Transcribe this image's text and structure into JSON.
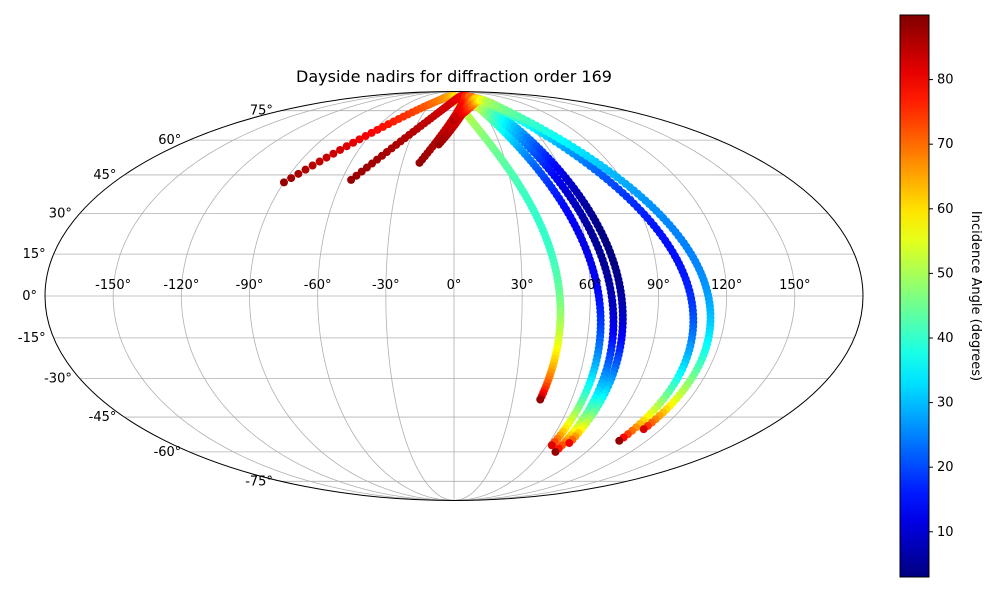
{
  "chart_data": {
    "type": "scatter",
    "projection": "mollweide",
    "title": "Dayside nadirs for diffraction order 169",
    "x_ticks": [
      "-150°",
      "-120°",
      "-90°",
      "-60°",
      "-30°",
      "0°",
      "30°",
      "60°",
      "90°",
      "120°",
      "150°"
    ],
    "y_ticks": [
      "75°",
      "60°",
      "45°",
      "30°",
      "15°",
      "0°",
      "-15°",
      "-30°",
      "-45°",
      "-60°",
      "-75°"
    ],
    "grid": true,
    "colorbar": {
      "label": "Incidence Angle (degrees)",
      "range": [
        3,
        90
      ],
      "ticks": [
        "10",
        "20",
        "30",
        "40",
        "50",
        "60",
        "70",
        "80"
      ],
      "colormap": "jet"
    },
    "tracks": [
      {
        "lon_start": -90,
        "lat_start": 42,
        "lon_peak": 0,
        "lat_peak": 85,
        "lon_end": 44,
        "lat_end": -38,
        "inc_start": 88,
        "inc_peak": 62,
        "inc_end": 88,
        "inc_min": 40
      },
      {
        "lon_start": -55,
        "lat_start": 43,
        "lon_peak": 20,
        "lat_peak": 85,
        "lon_end": 63,
        "lat_end": -57,
        "inc_start": 88,
        "inc_peak": 80,
        "inc_end": 82,
        "inc_min": 12
      },
      {
        "lon_start": -20,
        "lat_start": 50,
        "lon_peak": 28,
        "lat_peak": 85,
        "lon_end": 69,
        "lat_end": -60,
        "inc_start": 88,
        "inc_peak": 75,
        "inc_end": 88,
        "inc_min": 5
      },
      {
        "lon_start": -10,
        "lat_start": 58,
        "lon_peak": 35,
        "lat_peak": 84,
        "lon_end": 73,
        "lat_end": -56,
        "inc_start": 88,
        "inc_peak": 70,
        "inc_end": 80,
        "inc_min": 3
      },
      {
        "lon_start": 0,
        "lat_start": 70,
        "lon_peak": 40,
        "lat_peak": 83,
        "lon_end": 103,
        "lat_end": -55,
        "inc_start": 86,
        "inc_peak": 60,
        "inc_end": 88,
        "inc_min": 15
      },
      {
        "lon_start": 5,
        "lat_start": 72,
        "lon_peak": 45,
        "lat_peak": 82,
        "lon_end": 110,
        "lat_end": -50,
        "inc_start": 84,
        "inc_peak": 55,
        "inc_end": 82,
        "inc_min": 25
      }
    ]
  }
}
